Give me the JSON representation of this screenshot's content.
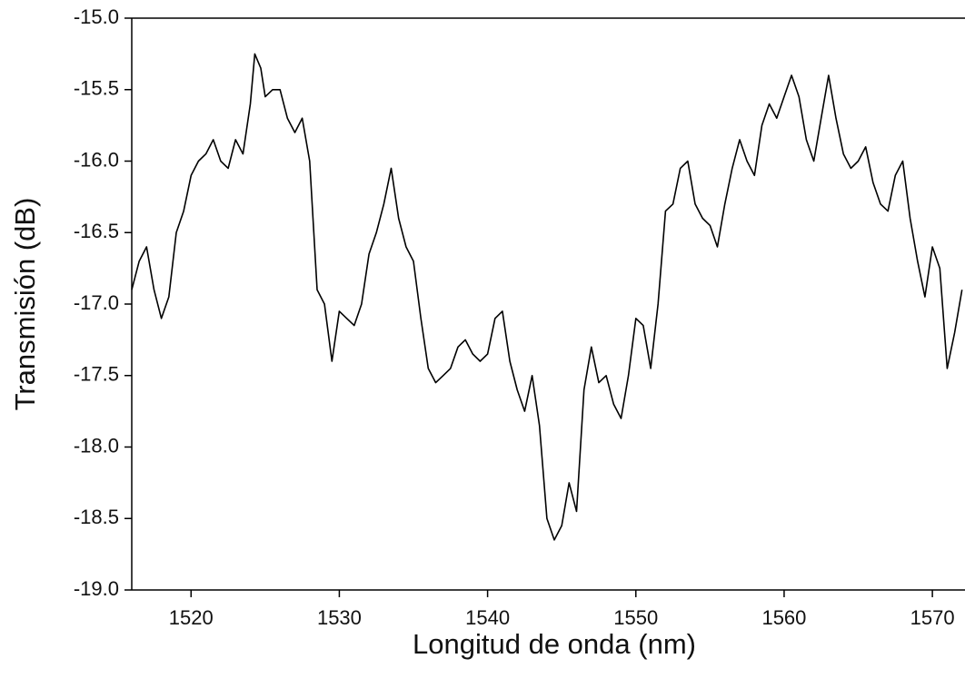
{
  "chart_data": {
    "type": "line",
    "xlabel": "Longitud de onda (nm)",
    "ylabel": "Transmisión (dB)",
    "x": [
      1516,
      1516.5,
      1517,
      1517.5,
      1518,
      1518.5,
      1519,
      1519.5,
      1520,
      1520.5,
      1521,
      1521.5,
      1522,
      1522.5,
      1523,
      1523.5,
      1524,
      1524.3,
      1524.7,
      1525,
      1525.5,
      1526,
      1526.5,
      1527,
      1527.5,
      1528,
      1528.5,
      1529,
      1529.5,
      1530,
      1530.5,
      1531,
      1531.5,
      1532,
      1532.5,
      1533,
      1533.5,
      1534,
      1534.5,
      1535,
      1535.5,
      1536,
      1536.5,
      1537,
      1537.5,
      1538,
      1538.5,
      1539,
      1539.5,
      1540,
      1540.5,
      1541,
      1541.5,
      1542,
      1542.5,
      1543,
      1543.5,
      1544,
      1544.5,
      1545,
      1545.5,
      1546,
      1546.5,
      1547,
      1547.5,
      1548,
      1548.5,
      1549,
      1549.5,
      1550,
      1550.5,
      1551,
      1551.5,
      1552,
      1552.5,
      1553,
      1553.5,
      1554,
      1554.5,
      1555,
      1555.5,
      1556,
      1556.5,
      1557,
      1557.5,
      1558,
      1558.5,
      1559,
      1559.5,
      1560,
      1560.5,
      1561,
      1561.5,
      1562,
      1562.5,
      1563,
      1563.5,
      1564,
      1564.5,
      1565,
      1565.5,
      1566,
      1566.5,
      1567,
      1567.5,
      1568,
      1568.5,
      1569,
      1569.5,
      1570,
      1570.5,
      1571,
      1571.5,
      1572
    ],
    "series": [
      {
        "name": "Transmisión",
        "color": "#000000",
        "values": [
          -16.9,
          -16.7,
          -16.6,
          -16.9,
          -17.1,
          -16.95,
          -16.5,
          -16.35,
          -16.1,
          -16.0,
          -15.95,
          -15.85,
          -16.0,
          -16.05,
          -15.85,
          -15.95,
          -15.6,
          -15.25,
          -15.35,
          -15.55,
          -15.5,
          -15.5,
          -15.7,
          -15.8,
          -15.7,
          -16.0,
          -16.9,
          -17.0,
          -17.4,
          -17.05,
          -17.1,
          -17.15,
          -17.0,
          -16.65,
          -16.5,
          -16.3,
          -16.05,
          -16.4,
          -16.6,
          -16.7,
          -17.1,
          -17.45,
          -17.55,
          -17.5,
          -17.45,
          -17.3,
          -17.25,
          -17.35,
          -17.4,
          -17.35,
          -17.1,
          -17.05,
          -17.4,
          -17.6,
          -17.75,
          -17.5,
          -17.85,
          -18.5,
          -18.65,
          -18.55,
          -18.25,
          -18.45,
          -17.6,
          -17.3,
          -17.55,
          -17.5,
          -17.7,
          -17.8,
          -17.5,
          -17.1,
          -17.15,
          -17.45,
          -17.0,
          -16.35,
          -16.3,
          -16.05,
          -16.0,
          -16.3,
          -16.4,
          -16.45,
          -16.6,
          -16.3,
          -16.05,
          -15.85,
          -16.0,
          -16.1,
          -15.75,
          -15.6,
          -15.7,
          -15.55,
          -15.4,
          -15.55,
          -15.85,
          -16.0,
          -15.7,
          -15.4,
          -15.7,
          -15.95,
          -16.05,
          -16.0,
          -15.9,
          -16.15,
          -16.3,
          -16.35,
          -16.1,
          -16.0,
          -16.4,
          -16.7,
          -16.95,
          -16.6,
          -16.75,
          -17.45,
          -17.2,
          -16.9
        ]
      }
    ],
    "xlim": [
      1516,
      1572.2
    ],
    "xticks": [
      1520,
      1530,
      1540,
      1550,
      1560,
      1570
    ],
    "ylim": [
      -19,
      -15
    ],
    "yticks": [
      {
        "value": -19,
        "label": "-19.0"
      },
      -18.5,
      {
        "value": -18,
        "label": "-18.0"
      },
      -17.5,
      {
        "value": -17,
        "label": "-17.0"
      },
      -16.5,
      {
        "value": -16,
        "label": "-16.0"
      },
      -15.5,
      {
        "value": -15,
        "label": "-15.0"
      }
    ]
  }
}
